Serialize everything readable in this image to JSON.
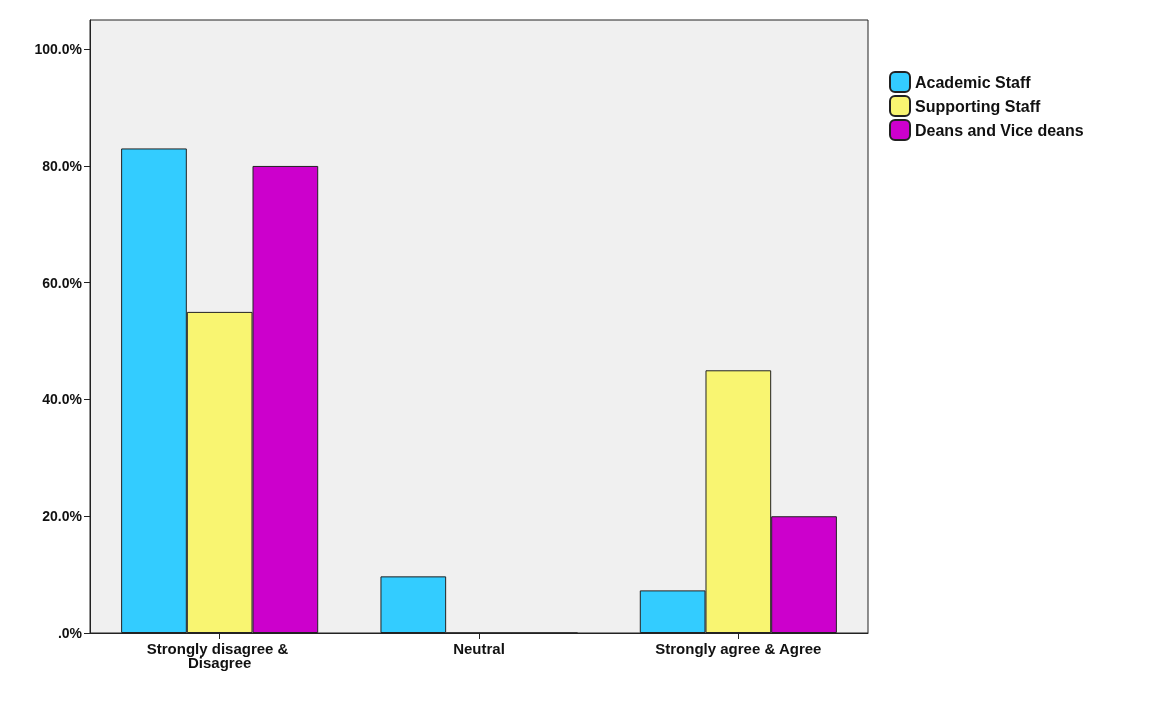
{
  "chart_data": {
    "type": "bar",
    "categories": [
      "Strongly disagree & Disagree",
      "Neutral",
      "Strongly agree & Agree"
    ],
    "series": [
      {
        "name": "Academic Staff",
        "color": "#33ccff",
        "values": [
          83,
          9.7,
          7.3
        ]
      },
      {
        "name": "Supporting Staff",
        "color": "#f9f571",
        "values": [
          55,
          0,
          45
        ]
      },
      {
        "name": "Deans and Vice deans",
        "color": "#cc00cc",
        "values": [
          80,
          0,
          20
        ]
      }
    ],
    "ylim": [
      0,
      105
    ],
    "yticks": [
      {
        "value": 0,
        "label": ".0%"
      },
      {
        "value": 20,
        "label": "20.0%"
      },
      {
        "value": 40,
        "label": "40.0%"
      },
      {
        "value": 60,
        "label": "60.0%"
      },
      {
        "value": 80,
        "label": "80.0%"
      },
      {
        "value": 100,
        "label": "100.0%"
      }
    ],
    "grid": false,
    "legend": "top right"
  }
}
